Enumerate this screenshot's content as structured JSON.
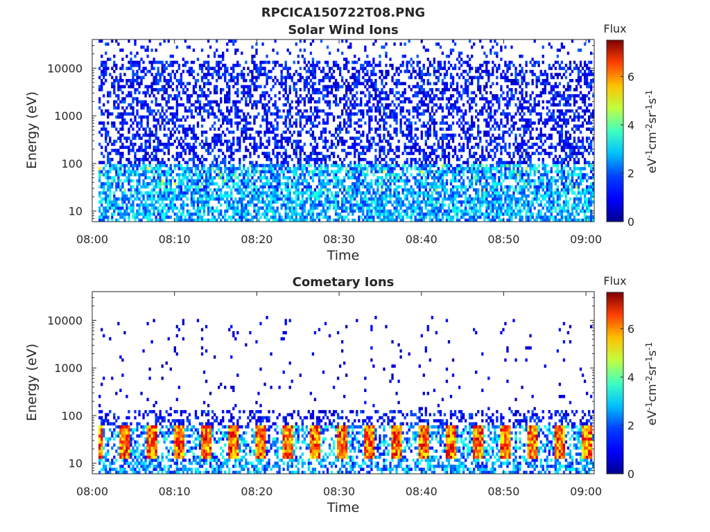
{
  "figure_title": "RPCICA150722T08.PNG",
  "colormap": [
    "#00008f",
    "#0000ff",
    "#0080ff",
    "#00ffff",
    "#80ff80",
    "#ffff00",
    "#ff8000",
    "#ff0000",
    "#800000"
  ],
  "chart_data": [
    {
      "type": "heatmap",
      "title": "Solar Wind Ions",
      "xlabel": "Time",
      "ylabel": "Energy (eV)",
      "x_ticks": [
        "08:00",
        "08:10",
        "08:20",
        "08:30",
        "08:40",
        "08:50",
        "09:00"
      ],
      "xlim_minutes": [
        0,
        61
      ],
      "y_scale": "log",
      "ylim": [
        6,
        40000
      ],
      "y_ticks": [
        10,
        100,
        1000,
        10000
      ],
      "y_tick_labels": [
        "10",
        "100",
        "1000",
        "10000"
      ],
      "colorbar": {
        "title": "Flux",
        "label": "eV-1cm-2sr-1s-1",
        "ticks": [
          0,
          2,
          4,
          6
        ],
        "tick_labels": [
          "0",
          "2",
          "4",
          "6"
        ],
        "clim": [
          0,
          7.5
        ]
      },
      "description": "Sparse blue (low flux ~0.5-1.5) across 100 eV - 40 keV; cyan/green (2-3) dominant below 100 eV; occasional yellow (~4) patches near 20-40 eV."
    },
    {
      "type": "heatmap",
      "title": "Cometary Ions",
      "xlabel": "Time",
      "ylabel": "Energy (eV)",
      "x_ticks": [
        "08:00",
        "08:10",
        "08:20",
        "08:30",
        "08:40",
        "08:50",
        "09:00"
      ],
      "xlim_minutes": [
        0,
        61
      ],
      "y_scale": "log",
      "ylim": [
        6,
        40000
      ],
      "y_ticks": [
        10,
        100,
        1000,
        10000
      ],
      "y_tick_labels": [
        "10",
        "100",
        "1000",
        "10000"
      ],
      "colorbar": {
        "title": "Flux",
        "label": "eV-1cm-2sr-1s-1",
        "ticks": [
          0,
          2,
          4,
          6
        ],
        "tick_labels": [
          "0",
          "2",
          "4",
          "6"
        ],
        "clim": [
          0,
          7.5
        ]
      },
      "description": "Periodic (~3.3 min) bursts of high flux (red/orange 5-7) at 15-45 eV, sparse blue dots up to ~10 keV, cyan-blue below 10 eV."
    }
  ]
}
